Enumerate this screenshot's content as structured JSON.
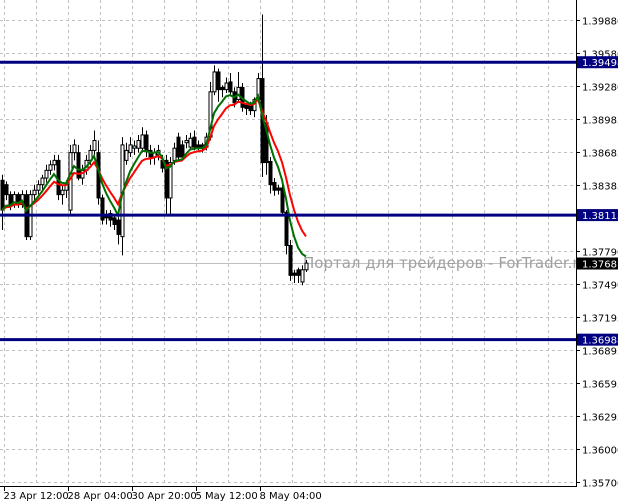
{
  "chart_data": {
    "type": "candlestick",
    "title": "",
    "y_ticks": [
      "1.39880",
      "1.39580",
      "1.39280",
      "1.38985",
      "1.38685",
      "1.38385",
      "1.37790",
      "1.37490",
      "1.37195",
      "1.36895",
      "1.36595",
      "1.36295",
      "1.36000",
      "1.35700"
    ],
    "y_range": [
      1.357,
      1.3988
    ],
    "x_ticks": [
      "23 Apr 12:00",
      "28 Apr 04:00",
      "30 Apr 20:00",
      "5 May 12:00",
      "8 May 04:00"
    ],
    "grid": true,
    "horizontal_levels": [
      {
        "label": "1.39498",
        "value": 1.39498
      },
      {
        "label": "1.38115",
        "value": 1.38115
      },
      {
        "label": "1.36988",
        "value": 1.36988
      }
    ],
    "current_price": {
      "label": "1.37681",
      "value": 1.37681
    },
    "watermark": "Портал для трейдеров - ForTrader.ru",
    "colors": {
      "levels": "#000080",
      "ma_fast": "#007000",
      "ma_slow": "#ff0000",
      "grid": "#c0c0c0",
      "bull_body": "#ffffff",
      "bear_body": "#000000"
    },
    "ohlc": [
      [
        1.3843,
        1.3848,
        1.3798,
        1.3816
      ],
      [
        1.3839,
        1.3842,
        1.3825,
        1.383
      ],
      [
        1.383,
        1.3833,
        1.3816,
        1.3821
      ],
      [
        1.3821,
        1.3833,
        1.3818,
        1.383
      ],
      [
        1.383,
        1.3832,
        1.3818,
        1.3821
      ],
      [
        1.3821,
        1.3834,
        1.3818,
        1.383
      ],
      [
        1.383,
        1.3834,
        1.3789,
        1.3792
      ],
      [
        1.3792,
        1.3834,
        1.3789,
        1.383
      ],
      [
        1.383,
        1.3839,
        1.3825,
        1.3834
      ],
      [
        1.3834,
        1.3843,
        1.383,
        1.3839
      ],
      [
        1.3839,
        1.3848,
        1.3834,
        1.3845
      ],
      [
        1.3845,
        1.3857,
        1.3841,
        1.3852
      ],
      [
        1.3852,
        1.3861,
        1.3848,
        1.3857
      ],
      [
        1.3857,
        1.3866,
        1.3852,
        1.3861
      ],
      [
        1.3861,
        1.3866,
        1.3825,
        1.383
      ],
      [
        1.383,
        1.3839,
        1.3821,
        1.3834
      ],
      [
        1.3834,
        1.3843,
        1.3827,
        1.3839
      ],
      [
        1.3816,
        1.3875,
        1.3812,
        1.3868
      ],
      [
        1.3868,
        1.388,
        1.3861,
        1.3875
      ],
      [
        1.3868,
        1.3875,
        1.3843,
        1.3845
      ],
      [
        1.3845,
        1.3857,
        1.3839,
        1.3852
      ],
      [
        1.3852,
        1.3866,
        1.3848,
        1.3861
      ],
      [
        1.3861,
        1.3875,
        1.3857,
        1.387
      ],
      [
        1.387,
        1.3888,
        1.3866,
        1.3879
      ],
      [
        1.3868,
        1.3879,
        1.3821,
        1.3827
      ],
      [
        1.3827,
        1.383,
        1.3803,
        1.3807
      ],
      [
        1.3812,
        1.3816,
        1.3803,
        1.3809
      ],
      [
        1.3813,
        1.3816,
        1.3801,
        1.3807
      ],
      [
        1.3809,
        1.3812,
        1.3798,
        1.3803
      ],
      [
        1.3807,
        1.3812,
        1.3785,
        1.3794
      ],
      [
        1.3792,
        1.3882,
        1.3775,
        1.3875
      ],
      [
        1.3861,
        1.3877,
        1.3857,
        1.387
      ],
      [
        1.3868,
        1.3882,
        1.3864,
        1.3875
      ],
      [
        1.3872,
        1.3879,
        1.3866,
        1.3874
      ],
      [
        1.3872,
        1.3884,
        1.3868,
        1.3879
      ],
      [
        1.3872,
        1.3891,
        1.3868,
        1.3884
      ],
      [
        1.3884,
        1.3888,
        1.3864,
        1.387
      ],
      [
        1.387,
        1.3875,
        1.3857,
        1.3864
      ],
      [
        1.3864,
        1.3872,
        1.3857,
        1.3868
      ],
      [
        1.3866,
        1.3875,
        1.3861,
        1.387
      ],
      [
        1.3861,
        1.3866,
        1.385,
        1.3854
      ],
      [
        1.3861,
        1.3866,
        1.3812,
        1.3827
      ],
      [
        1.3827,
        1.3864,
        1.3812,
        1.3859
      ],
      [
        1.3861,
        1.3877,
        1.3857,
        1.3872
      ],
      [
        1.3882,
        1.3886,
        1.3861,
        1.3864
      ],
      [
        1.3875,
        1.3879,
        1.3861,
        1.3864
      ],
      [
        1.3877,
        1.3884,
        1.3872,
        1.3879
      ],
      [
        1.3873,
        1.3886,
        1.387,
        1.3881
      ],
      [
        1.3882,
        1.3888,
        1.387,
        1.3873
      ],
      [
        1.3875,
        1.3879,
        1.387,
        1.3873
      ],
      [
        1.3875,
        1.3877,
        1.3868,
        1.3872
      ],
      [
        1.3873,
        1.3886,
        1.387,
        1.3882
      ],
      [
        1.3882,
        1.3932,
        1.3879,
        1.3923
      ],
      [
        1.3923,
        1.3947,
        1.392,
        1.3941
      ],
      [
        1.3941,
        1.3944,
        1.3914,
        1.3925
      ],
      [
        1.3927,
        1.3929,
        1.3918,
        1.3925
      ],
      [
        1.3925,
        1.3936,
        1.3922,
        1.3931
      ],
      [
        1.3932,
        1.394,
        1.392,
        1.3923
      ],
      [
        1.3923,
        1.3927,
        1.3909,
        1.3913
      ],
      [
        1.3916,
        1.3941,
        1.3913,
        1.3927
      ],
      [
        1.3927,
        1.3931,
        1.3905,
        1.3909
      ],
      [
        1.3911,
        1.3913,
        1.3902,
        1.3908
      ],
      [
        1.3911,
        1.3914,
        1.3902,
        1.3906
      ],
      [
        1.3906,
        1.3918,
        1.39,
        1.3916
      ],
      [
        1.3916,
        1.394,
        1.3913,
        1.3935
      ],
      [
        1.3935,
        1.3993,
        1.3846,
        1.3859
      ],
      [
        1.3895,
        1.3902,
        1.3848,
        1.3859
      ],
      [
        1.386,
        1.3864,
        1.3831,
        1.3839
      ],
      [
        1.3841,
        1.3845,
        1.3829,
        1.3834
      ],
      [
        1.3836,
        1.3839,
        1.383,
        1.3834
      ],
      [
        1.3836,
        1.3839,
        1.3811,
        1.3814
      ],
      [
        1.3814,
        1.3816,
        1.3776,
        1.3784
      ],
      [
        1.3784,
        1.3789,
        1.3752,
        1.3757
      ],
      [
        1.3759,
        1.3762,
        1.375,
        1.3757
      ],
      [
        1.3762,
        1.3764,
        1.375,
        1.3757
      ],
      [
        1.3751,
        1.3766,
        1.3748,
        1.3762
      ],
      [
        1.3762,
        1.3771,
        1.376,
        1.3768
      ]
    ]
  }
}
